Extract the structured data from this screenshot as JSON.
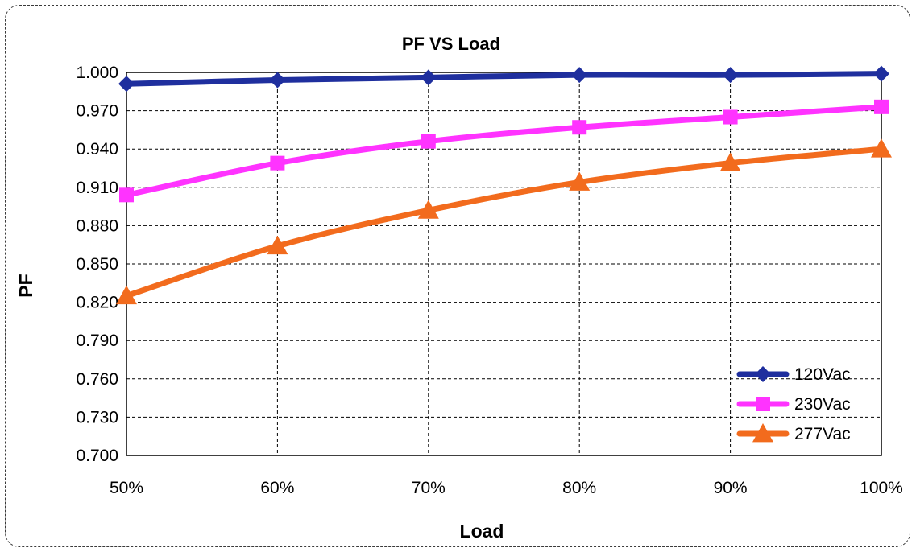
{
  "chart_data": {
    "type": "line",
    "title": "PF  VS  Load",
    "xlabel": "Load",
    "ylabel": "PF",
    "categories": [
      "50%",
      "60%",
      "70%",
      "80%",
      "90%",
      "100%"
    ],
    "ylim": [
      0.7,
      1.0
    ],
    "yticks": [
      "0.700",
      "0.730",
      "0.760",
      "0.790",
      "0.820",
      "0.850",
      "0.880",
      "0.910",
      "0.940",
      "0.970",
      "1.000"
    ],
    "grid": true,
    "legend_position": "bottom-right",
    "series": [
      {
        "name": "120Vac",
        "values": [
          0.991,
          0.994,
          0.996,
          0.998,
          0.998,
          0.999
        ],
        "color": "#1f2f9e",
        "marker": "diamond"
      },
      {
        "name": "230Vac",
        "values": [
          0.904,
          0.929,
          0.946,
          0.957,
          0.965,
          0.973
        ],
        "color": "#ff33ff",
        "marker": "square"
      },
      {
        "name": "277Vac",
        "values": [
          0.825,
          0.864,
          0.892,
          0.914,
          0.929,
          0.94
        ],
        "color": "#f26b1d",
        "marker": "triangle"
      }
    ]
  }
}
